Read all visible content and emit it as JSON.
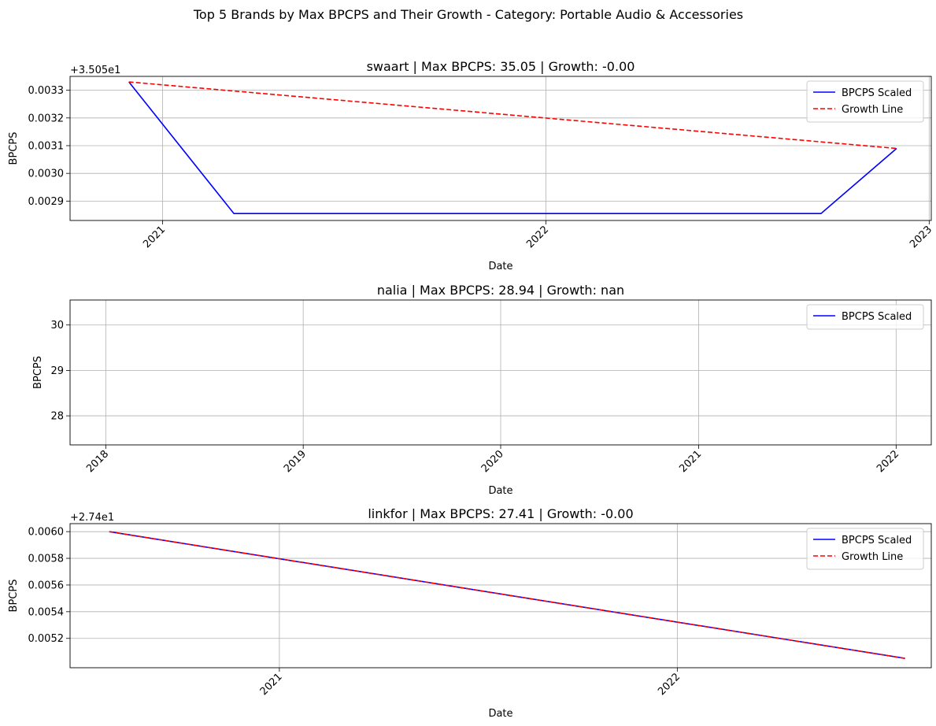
{
  "figure": {
    "title": "Top 5 Brands by Max BPCPS and Their Growth - Category: Portable Audio & Accessories"
  },
  "chart_data": [
    {
      "type": "line",
      "title": "swaart | Max BPCPS: 35.05 | Growth: -0.00",
      "xlabel": "Date",
      "ylabel": "BPCPS",
      "offset_label": "+3.505e1",
      "x_ticks": [
        "2021",
        "2022",
        "2023"
      ],
      "y_ticks": [
        "0.0029",
        "0.0030",
        "0.0031",
        "0.0032",
        "0.0033"
      ],
      "xlim": [
        "2020-10-05",
        "2023-01-03"
      ],
      "ylim": [
        0.00283,
        0.00335
      ],
      "grid": true,
      "legend_position": "upper right",
      "series": [
        {
          "name": "BPCPS Scaled",
          "color": "#0000ff",
          "style": "solid",
          "x": [
            "2020-11-30",
            "2021-03-10",
            "2022-09-20",
            "2022-12-01"
          ],
          "y": [
            0.00333,
            0.002855,
            0.002855,
            0.00309
          ]
        },
        {
          "name": "Growth Line",
          "color": "#ff0000",
          "style": "dashed",
          "x": [
            "2020-11-30",
            "2022-12-01"
          ],
          "y": [
            0.00333,
            0.00309
          ]
        }
      ]
    },
    {
      "type": "line",
      "title": "nalia | Max BPCPS: 28.94 | Growth: nan",
      "xlabel": "Date",
      "ylabel": "BPCPS",
      "offset_label": "",
      "x_ticks": [
        "2018",
        "2019",
        "2020",
        "2021",
        "2022"
      ],
      "y_ticks": [
        "28",
        "29",
        "30"
      ],
      "xlim": [
        "2017-10-27",
        "2022-03-07"
      ],
      "ylim": [
        27.36,
        30.55
      ],
      "grid": true,
      "legend_position": "upper right",
      "series": [
        {
          "name": "BPCPS Scaled",
          "color": "#0000ff",
          "style": "solid",
          "x": [],
          "y": []
        }
      ]
    },
    {
      "type": "line",
      "title": "linkfor | Max BPCPS: 27.41 | Growth: -0.00",
      "xlabel": "Date",
      "ylabel": "BPCPS",
      "offset_label": "+2.74e1",
      "x_ticks": [
        "2021",
        "2022"
      ],
      "y_ticks": [
        "0.0052",
        "0.0054",
        "0.0056",
        "0.0058",
        "0.0060"
      ],
      "xlim": [
        "2020-06-23",
        "2022-08-22"
      ],
      "ylim": [
        0.00498,
        0.00606
      ],
      "grid": true,
      "legend_position": "upper right",
      "series": [
        {
          "name": "BPCPS Scaled",
          "color": "#0000ff",
          "style": "solid",
          "x": [
            "2020-07-29",
            "2022-07-29"
          ],
          "y": [
            0.006,
            0.00505
          ]
        },
        {
          "name": "Growth Line",
          "color": "#ff0000",
          "style": "dashed",
          "x": [
            "2020-07-29",
            "2022-07-29"
          ],
          "y": [
            0.006,
            0.00505
          ]
        }
      ]
    }
  ]
}
